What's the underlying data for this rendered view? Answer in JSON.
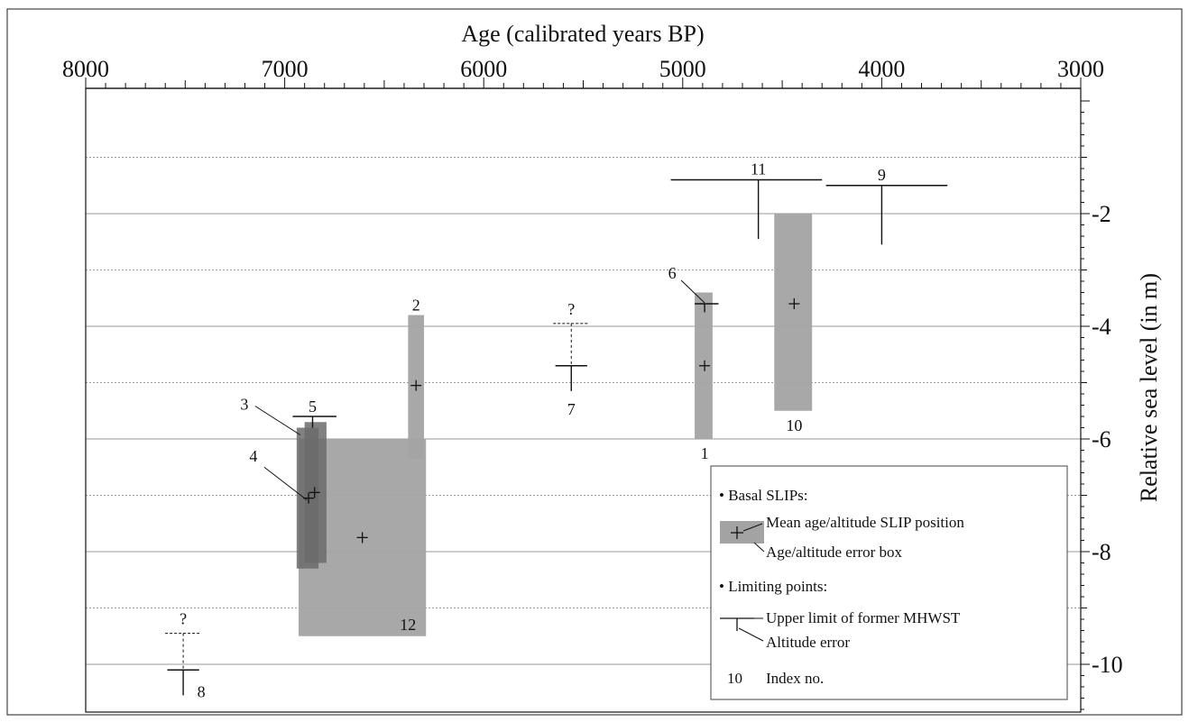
{
  "chart_data": {
    "type": "scatter",
    "title": "",
    "xlabel": "Age (calibrated years BP)",
    "ylabel": "Relative sea level (in m)",
    "xlim": [
      8000,
      3000
    ],
    "ylim": [
      -10.9,
      -0.0
    ],
    "x_ticks": [
      8000,
      7000,
      6000,
      5000,
      4000,
      3000
    ],
    "x_tick_labels": [
      "8000",
      "7000",
      "6000",
      "5000",
      "4000",
      "3000"
    ],
    "y_ticks": [
      -2,
      -4,
      -6,
      -8,
      -10
    ],
    "y_tick_labels": [
      "-2",
      "-4",
      "-6",
      "-8",
      "-10"
    ],
    "y_gridlines": [
      -1,
      -2,
      -3,
      -4,
      -5,
      -6,
      -7,
      -8,
      -9,
      -10
    ],
    "grid": true,
    "slips": [
      {
        "id": "1",
        "label": "1",
        "x_min": 4940,
        "x_max": 4850,
        "y_min": -6.0,
        "y_max": -3.4,
        "mean_x": 4890,
        "mean_y": -4.7,
        "shade": "light"
      },
      {
        "id": "2",
        "label": "2",
        "x_min": 6380,
        "x_max": 6300,
        "y_min": -6.35,
        "y_max": -3.8,
        "mean_x": 6340,
        "mean_y": -5.05,
        "shade": "light"
      },
      {
        "id": "3",
        "label": "3",
        "x_min": 6940,
        "x_max": 6830,
        "y_min": -8.3,
        "y_max": -5.8,
        "mean_x": 6880,
        "mean_y": -7.05,
        "shade": "dark"
      },
      {
        "id": "4",
        "label": "4",
        "x_min": 6900,
        "x_max": 6790,
        "y_min": -8.2,
        "y_max": -5.7,
        "mean_x": 6850,
        "mean_y": -6.95,
        "shade": "dark"
      },
      {
        "id": "10",
        "label": "10",
        "x_min": 4540,
        "x_max": 4350,
        "y_min": -5.5,
        "y_max": -2.0,
        "mean_x": 4440,
        "mean_y": -3.6,
        "shade": "light"
      },
      {
        "id": "12",
        "label": "12",
        "x_min": 6930,
        "x_max": 6290,
        "y_min": -9.5,
        "y_max": -6.0,
        "mean_x": 6610,
        "mean_y": -7.75,
        "shade": "light"
      }
    ],
    "limiting_points": [
      {
        "id": "5",
        "label": "5",
        "x": 6860,
        "y": -5.6,
        "x_min": 6960,
        "x_max": 6740,
        "y_low": -5.8
      },
      {
        "id": "6",
        "label": "6",
        "x": 4890,
        "y": -3.6,
        "x_min": 4940,
        "x_max": 4820,
        "y_low": -3.75
      },
      {
        "id": "7",
        "label": "7",
        "x": 5560,
        "y": -4.7,
        "x_min": 5640,
        "x_max": 5480,
        "y_low": -5.15,
        "question_y": -3.95
      },
      {
        "id": "8",
        "label": "8",
        "x": 7510,
        "y": -10.1,
        "x_min": 7590,
        "x_max": 7430,
        "y_low": -10.55,
        "question_y": -9.45
      },
      {
        "id": "9",
        "label": "9",
        "x": 4000,
        "y": -1.5,
        "x_min": 4280,
        "x_max": 3670,
        "y_low": -2.55
      },
      {
        "id": "11",
        "label": "11",
        "x": 4620,
        "y": -1.4,
        "x_min": 5060,
        "x_max": 4300,
        "y_low": -2.45
      }
    ],
    "question_mark": "?",
    "legend": {
      "position": "bottom-right",
      "section_basal": "• Basal SLIPs:",
      "mean_label": "Mean age/altitude SLIP position",
      "box_label": "Age/altitude error box",
      "section_limiting": "• Limiting points:",
      "upper_label": "Upper limit of former MHWST",
      "altitude_error_label": "Altitude error",
      "index_sample": "10",
      "index_label": "Index no."
    },
    "colors": {
      "box_light": "#a3a3a3",
      "box_dark": "#6b6b6b",
      "gridline": "#9a9a9a",
      "axis": "#111111"
    }
  }
}
